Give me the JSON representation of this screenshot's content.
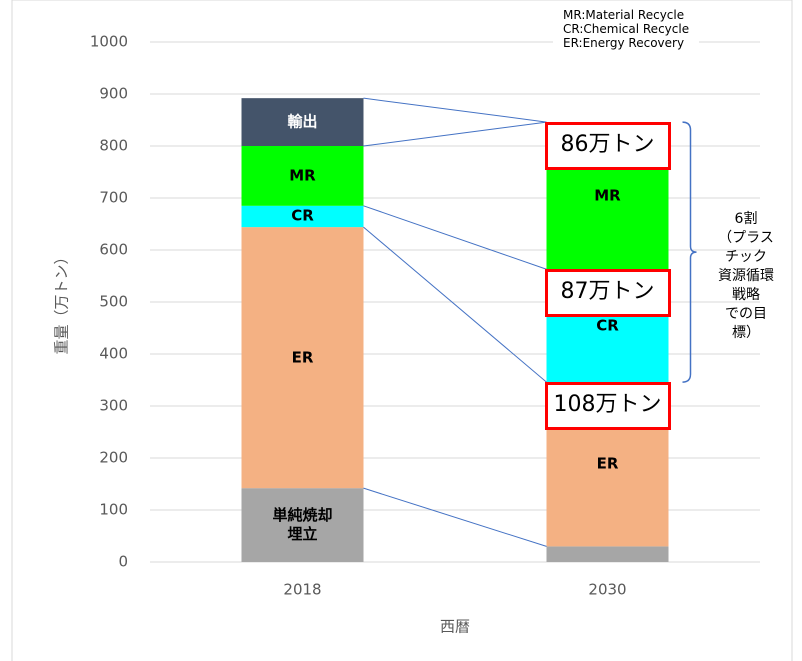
{
  "chart_data": {
    "type": "stacked_bar",
    "categories": [
      "2018",
      "2030"
    ],
    "series": [
      {
        "name": "単純焼却\n埋立",
        "color": "#a6a6a6",
        "values": [
          142,
          30
        ]
      },
      {
        "name": "ER",
        "color": "#f4b183",
        "values": [
          502,
          316
        ]
      },
      {
        "name": "CR",
        "color": "#00ffff",
        "values": [
          41,
          217
        ]
      },
      {
        "name": "MR",
        "color": "#00ff00",
        "values": [
          115,
          283
        ]
      },
      {
        "name": "輸出",
        "color": "#44546a",
        "values": [
          92,
          null
        ]
      }
    ],
    "ylim": [
      0,
      1000
    ],
    "yticks": [
      0,
      100,
      200,
      300,
      400,
      500,
      600,
      700,
      800,
      900,
      1000
    ],
    "grid": true,
    "ylabel": "重量（万トン）",
    "xlabel": "西暦",
    "annotations": [
      "86万トン",
      "87万トン",
      "108万トン"
    ],
    "bracket_note": "6割\n（プラスチック\n資源循環戦略\nでの目標）",
    "legend_note": [
      "MR:Material Recycle",
      "CR:Chemical Recycle",
      "ER:Energy Recovery"
    ]
  }
}
